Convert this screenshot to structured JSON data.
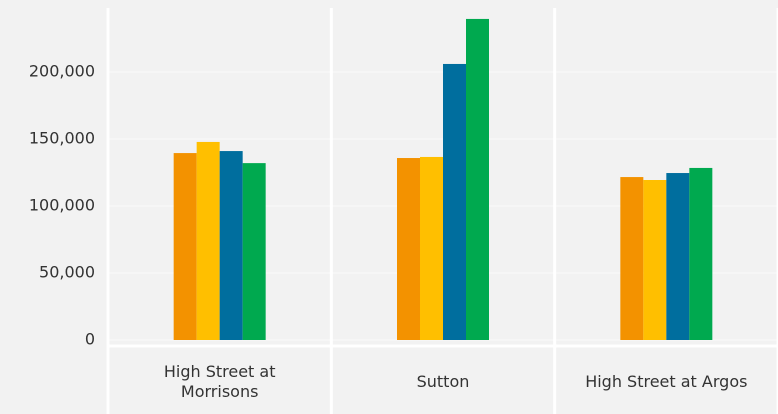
{
  "chart_data": {
    "type": "bar",
    "categories": [
      "High Street at Morrisons",
      "Sutton",
      "High Street at Argos"
    ],
    "series": [
      {
        "color": "#f39200",
        "values": [
          139500,
          135800,
          121600
        ]
      },
      {
        "color": "#ffbf00",
        "values": [
          147800,
          136600,
          119400
        ]
      },
      {
        "color": "#006e9e",
        "values": [
          141000,
          206000,
          124600
        ]
      },
      {
        "color": "#00a94f",
        "values": [
          132000,
          239600,
          128400
        ]
      }
    ],
    "ylim": [
      0,
      250000
    ],
    "yticks": [
      0,
      {
        "value": 50000,
        "label": "50,000"
      },
      {
        "value": 100000,
        "label": "100,000"
      },
      {
        "value": 150000,
        "label": "150,000"
      },
      {
        "value": 200000,
        "label": "200,000"
      }
    ],
    "grid": true
  }
}
